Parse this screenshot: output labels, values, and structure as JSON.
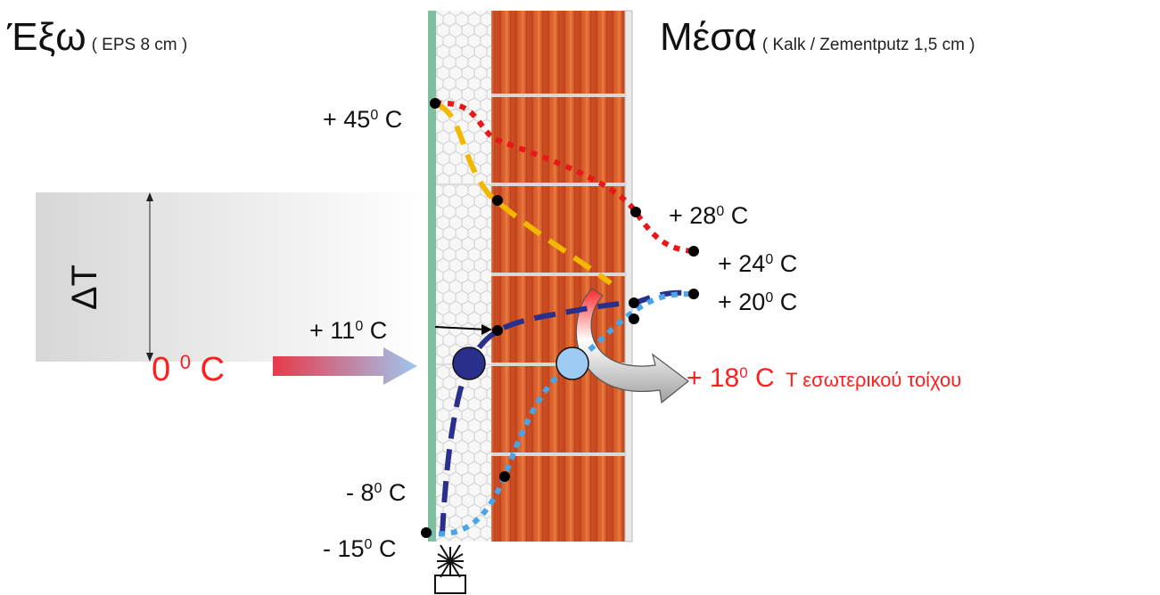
{
  "outside": {
    "title": "Έξω",
    "subtitle": "( EPS 8 cm )"
  },
  "inside": {
    "title": "Μέσα",
    "subtitle": "( Kalk / Zementputz 1,5 cm )"
  },
  "delta_label": "ΔT",
  "outdoor_temp": {
    "value": "0",
    "sup": "0",
    "unit": "C"
  },
  "temps": {
    "t45": {
      "sign": "+ 45",
      "sup": "0",
      "unit": " C"
    },
    "t28": {
      "sign": "+ 28",
      "sup": "0",
      "unit": " C"
    },
    "t24": {
      "sign": "+ 24",
      "sup": "0",
      "unit": " C"
    },
    "t20": {
      "sign": "+ 20",
      "sup": "0",
      "unit": " C"
    },
    "t11": {
      "sign": "+ 11",
      "sup": "0",
      "unit": " C"
    },
    "tm8": {
      "sign": "- 8",
      "sup": "0",
      "unit": " C"
    },
    "tm15": {
      "sign": "- 15",
      "sup": "0",
      "unit": " C"
    }
  },
  "inner_wall": {
    "sign": "+ 18",
    "sup": "0",
    "unit": " C",
    "label": "T εσωτερικού τοίχου"
  },
  "colors": {
    "insulation_edge": "#7fbfa0",
    "brick": "#d8582a",
    "hot_curve": "#e81818",
    "warm_curve": "#f2b800",
    "cold_curve": "#2a2f8c",
    "cool_curve": "#4aa4e6",
    "label_red": "#ff1e1e"
  },
  "icons": {
    "frost": "snowflake-icon"
  }
}
